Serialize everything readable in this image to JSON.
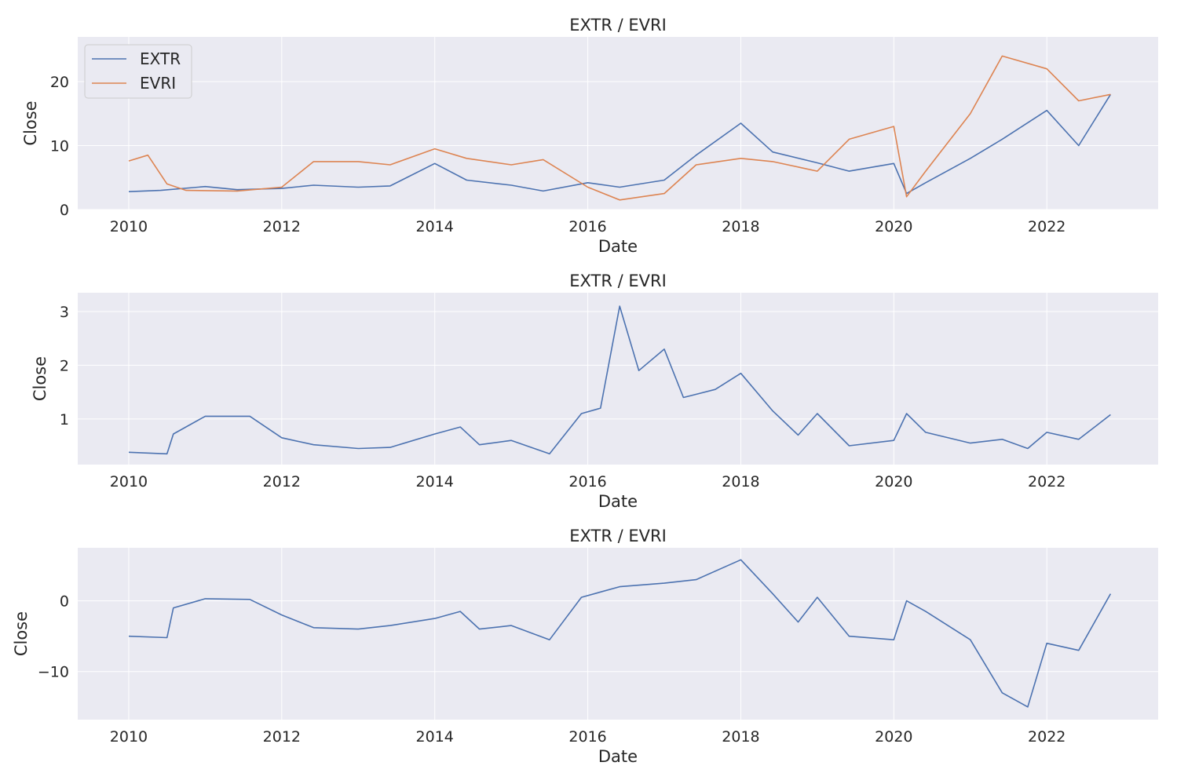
{
  "chart_data": [
    {
      "type": "line",
      "title": "EXTR / EVRI",
      "xlabel": "Date",
      "ylabel": "Close",
      "xlim": [
        "2009-05-01",
        "2023-06-15"
      ],
      "ylim": [
        0,
        27
      ],
      "xticks": [
        "2010",
        "2012",
        "2014",
        "2016",
        "2018",
        "2020",
        "2022"
      ],
      "yticks": [
        0,
        10,
        20
      ],
      "grid": true,
      "legend": "top-left",
      "series": [
        {
          "name": "EXTR",
          "color": "#4c72b0",
          "x": [
            "2010-01",
            "2010-06",
            "2011-01",
            "2011-06",
            "2012-01",
            "2012-06",
            "2013-01",
            "2013-06",
            "2014-01",
            "2014-06",
            "2015-01",
            "2015-06",
            "2016-01",
            "2016-06",
            "2017-01",
            "2017-06",
            "2018-01",
            "2018-06",
            "2019-01",
            "2019-06",
            "2020-01",
            "2020-03",
            "2020-06",
            "2021-01",
            "2021-06",
            "2022-01",
            "2022-06",
            "2022-11"
          ],
          "y": [
            2.8,
            3.0,
            3.6,
            3.1,
            3.3,
            3.8,
            3.5,
            3.7,
            7.2,
            4.6,
            3.8,
            2.9,
            4.2,
            3.5,
            4.6,
            8.5,
            13.5,
            9.0,
            7.3,
            6.0,
            7.2,
            2.5,
            4.2,
            8.0,
            11.0,
            15.5,
            10.0,
            18.0
          ]
        },
        {
          "name": "EVRI",
          "color": "#dd8452",
          "x": [
            "2010-01",
            "2010-04",
            "2010-07",
            "2010-10",
            "2011-06",
            "2012-01",
            "2012-06",
            "2013-01",
            "2013-06",
            "2014-01",
            "2014-06",
            "2015-01",
            "2015-06",
            "2016-01",
            "2016-06",
            "2017-01",
            "2017-06",
            "2018-01",
            "2018-06",
            "2019-01",
            "2019-06",
            "2020-01",
            "2020-03",
            "2020-06",
            "2021-01",
            "2021-06",
            "2022-01",
            "2022-06",
            "2022-11"
          ],
          "y": [
            7.6,
            8.5,
            4.0,
            3.0,
            2.9,
            3.5,
            7.5,
            7.5,
            7.0,
            9.5,
            8.0,
            7.0,
            7.8,
            3.5,
            1.5,
            2.5,
            7.0,
            8.0,
            7.5,
            6.0,
            11.0,
            13.0,
            2.0,
            6.0,
            15.0,
            24.0,
            22.0,
            17.0,
            18.0
          ]
        }
      ]
    },
    {
      "type": "line",
      "title": "EXTR / EVRI",
      "xlabel": "Date",
      "ylabel": "Close",
      "xlim": [
        "2009-05-01",
        "2023-06-15"
      ],
      "ylim": [
        0.15,
        3.35
      ],
      "xticks": [
        "2010",
        "2012",
        "2014",
        "2016",
        "2018",
        "2020",
        "2022"
      ],
      "yticks": [
        1,
        2,
        3
      ],
      "grid": true,
      "series": [
        {
          "color": "#4c72b0",
          "x": [
            "2010-01",
            "2010-07",
            "2010-08",
            "2011-01",
            "2011-08",
            "2012-01",
            "2012-06",
            "2013-01",
            "2013-06",
            "2014-01",
            "2014-05",
            "2014-08",
            "2015-01",
            "2015-07",
            "2015-12",
            "2016-03",
            "2016-06",
            "2016-09",
            "2017-01",
            "2017-04",
            "2017-09",
            "2018-01",
            "2018-06",
            "2018-10",
            "2019-01",
            "2019-06",
            "2020-01",
            "2020-03",
            "2020-06",
            "2021-01",
            "2021-06",
            "2021-10",
            "2022-01",
            "2022-06",
            "2022-11"
          ],
          "y": [
            0.38,
            0.35,
            0.72,
            1.05,
            1.05,
            0.65,
            0.52,
            0.45,
            0.47,
            0.72,
            0.85,
            0.52,
            0.6,
            0.35,
            1.1,
            1.2,
            3.1,
            1.9,
            2.3,
            1.4,
            1.55,
            1.85,
            1.15,
            0.7,
            1.1,
            0.5,
            0.6,
            1.1,
            0.75,
            0.55,
            0.62,
            0.45,
            0.75,
            0.62,
            1.08
          ]
        }
      ]
    },
    {
      "type": "line",
      "title": "EXTR / EVRI",
      "xlabel": "Date",
      "ylabel": "Close",
      "xlim": [
        "2009-05-01",
        "2023-06-15"
      ],
      "ylim": [
        -16.8,
        7.5
      ],
      "xticks": [
        "2010",
        "2012",
        "2014",
        "2016",
        "2018",
        "2020",
        "2022"
      ],
      "yticks": [
        -10,
        0
      ],
      "grid": true,
      "series": [
        {
          "color": "#4c72b0",
          "x": [
            "2010-01",
            "2010-07",
            "2010-08",
            "2011-01",
            "2011-08",
            "2012-01",
            "2012-06",
            "2013-01",
            "2013-06",
            "2014-01",
            "2014-05",
            "2014-08",
            "2015-01",
            "2015-07",
            "2015-12",
            "2016-06",
            "2017-01",
            "2017-06",
            "2018-01",
            "2018-06",
            "2018-10",
            "2019-01",
            "2019-06",
            "2020-01",
            "2020-03",
            "2020-06",
            "2021-01",
            "2021-06",
            "2021-10",
            "2022-01",
            "2022-06",
            "2022-11"
          ],
          "y": [
            -5.0,
            -5.2,
            -1.0,
            0.3,
            0.2,
            -2.0,
            -3.8,
            -4.0,
            -3.5,
            -2.5,
            -1.5,
            -4.0,
            -3.5,
            -5.5,
            0.5,
            2.0,
            2.5,
            3.0,
            5.8,
            1.0,
            -3.0,
            0.5,
            -5.0,
            -5.5,
            0.0,
            -1.5,
            -5.5,
            -13.0,
            -15.0,
            -6.0,
            -7.0,
            1.0
          ]
        }
      ]
    }
  ]
}
